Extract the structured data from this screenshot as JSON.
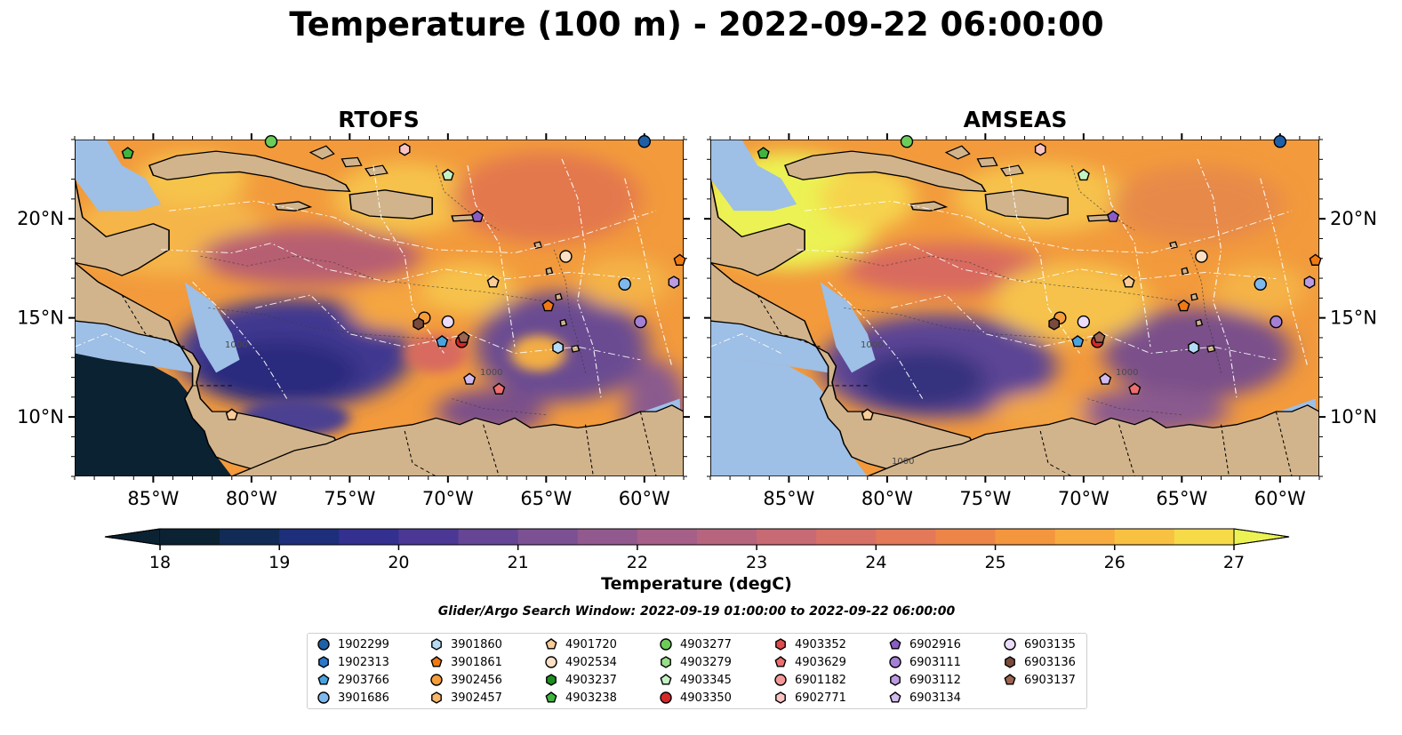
{
  "title": "Temperature (100 m) - 2022-09-22 06:00:00",
  "panels": [
    {
      "title": "RTOFS"
    },
    {
      "title": "AMSEAS"
    }
  ],
  "axes": {
    "lon_ticks": [
      "85°W",
      "80°W",
      "75°W",
      "70°W",
      "65°W",
      "60°W"
    ],
    "lat_ticks_left": [
      "20°N",
      "15°N",
      "10°N"
    ],
    "lat_ticks_right": [
      "20°N",
      "15°N",
      "10°N"
    ],
    "lon_range": [
      -89,
      -58
    ],
    "lat_range": [
      7,
      24
    ]
  },
  "colorbar": {
    "label": "Temperature (degC)",
    "ticks": [
      "18",
      "19",
      "20",
      "21",
      "22",
      "23",
      "24",
      "25",
      "26",
      "27"
    ],
    "range": [
      18,
      27
    ],
    "extend": "both"
  },
  "search_window": "Glider/Argo Search Window: 2022-09-19 01:00:00 to 2022-09-22 06:00:00",
  "contour_labels": [
    "1000",
    "1000",
    "1000",
    "1000",
    "1000"
  ],
  "colors": {
    "land": "#d2b48c",
    "shallow_water": "#9ebfe6",
    "cold": "#0b2233",
    "warm": "#ecf253"
  },
  "legend": [
    {
      "id": "1902299",
      "color": "#1f5fa8",
      "shape": "circle"
    },
    {
      "id": "1902313",
      "color": "#2d78c8",
      "shape": "hexagon"
    },
    {
      "id": "2903766",
      "color": "#4aa3df",
      "shape": "pentagon"
    },
    {
      "id": "3901686",
      "color": "#7fb8ec",
      "shape": "circle"
    },
    {
      "id": "3901860",
      "color": "#b6dcf5",
      "shape": "hexagon"
    },
    {
      "id": "3901861",
      "color": "#f07a12",
      "shape": "pentagon"
    },
    {
      "id": "3902456",
      "color": "#f59d3a",
      "shape": "circle"
    },
    {
      "id": "3902457",
      "color": "#f7b66a",
      "shape": "hexagon"
    },
    {
      "id": "4901720",
      "color": "#f9cc98",
      "shape": "pentagon"
    },
    {
      "id": "4902534",
      "color": "#fbe0c3",
      "shape": "circle"
    },
    {
      "id": "4903237",
      "color": "#1e8e1e",
      "shape": "hexagon"
    },
    {
      "id": "4903238",
      "color": "#3fb53f",
      "shape": "pentagon"
    },
    {
      "id": "4903277",
      "color": "#6ccc5a",
      "shape": "circle"
    },
    {
      "id": "4903279",
      "color": "#98df8a",
      "shape": "hexagon"
    },
    {
      "id": "4903345",
      "color": "#c4f2c4",
      "shape": "pentagon"
    },
    {
      "id": "4903350",
      "color": "#d62728",
      "shape": "circle"
    },
    {
      "id": "4903352",
      "color": "#e04b4b",
      "shape": "hexagon"
    },
    {
      "id": "4903629",
      "color": "#ec6e6e",
      "shape": "pentagon"
    },
    {
      "id": "6901182",
      "color": "#f49898",
      "shape": "circle"
    },
    {
      "id": "6902771",
      "color": "#fbc4c4",
      "shape": "hexagon"
    },
    {
      "id": "6902916",
      "color": "#8a5cc6",
      "shape": "pentagon"
    },
    {
      "id": "6903111",
      "color": "#a47fd6",
      "shape": "circle"
    },
    {
      "id": "6903112",
      "color": "#bb9be3",
      "shape": "hexagon"
    },
    {
      "id": "6903134",
      "color": "#d2bbef",
      "shape": "pentagon"
    },
    {
      "id": "6903135",
      "color": "#ebdcf9",
      "shape": "circle"
    },
    {
      "id": "6903136",
      "color": "#7a4b3c",
      "shape": "hexagon"
    },
    {
      "id": "6903137",
      "color": "#9c6551",
      "shape": "pentagon"
    }
  ],
  "observations": [
    {
      "id": "4903238",
      "lon": -86.3,
      "lat": 23.3
    },
    {
      "id": "4903277",
      "lon": -79.0,
      "lat": 23.9
    },
    {
      "id": "6902771",
      "lon": -72.2,
      "lat": 23.5
    },
    {
      "id": "1902299",
      "lon": -60.0,
      "lat": 23.9
    },
    {
      "id": "4903345",
      "lon": -70.0,
      "lat": 22.2
    },
    {
      "id": "6902916",
      "lon": -68.5,
      "lat": 20.1
    },
    {
      "id": "4902534",
      "lon": -64.0,
      "lat": 18.1
    },
    {
      "id": "3901861",
      "lon": -58.2,
      "lat": 17.9
    },
    {
      "id": "3901686",
      "lon": -61.0,
      "lat": 16.7
    },
    {
      "id": "6903112",
      "lon": -58.5,
      "lat": 16.8
    },
    {
      "id": "4901720",
      "lon": -67.7,
      "lat": 16.8
    },
    {
      "id": "3901861",
      "lon": -64.9,
      "lat": 15.6
    },
    {
      "id": "3902456",
      "lon": -71.2,
      "lat": 15.0
    },
    {
      "id": "6903136",
      "lon": -71.5,
      "lat": 14.7
    },
    {
      "id": "6903135",
      "lon": -70.0,
      "lat": 14.8
    },
    {
      "id": "6903111",
      "lon": -60.2,
      "lat": 14.8
    },
    {
      "id": "2903766",
      "lon": -70.3,
      "lat": 13.8
    },
    {
      "id": "4903350",
      "lon": -69.3,
      "lat": 13.8
    },
    {
      "id": "6903137",
      "lon": -69.2,
      "lat": 14.0
    },
    {
      "id": "3901860",
      "lon": -64.4,
      "lat": 13.5
    },
    {
      "id": "6903134",
      "lon": -68.9,
      "lat": 11.9
    },
    {
      "id": "4903629",
      "lon": -67.4,
      "lat": 11.4
    },
    {
      "id": "4901720",
      "lon": -81.0,
      "lat": 10.1
    }
  ]
}
